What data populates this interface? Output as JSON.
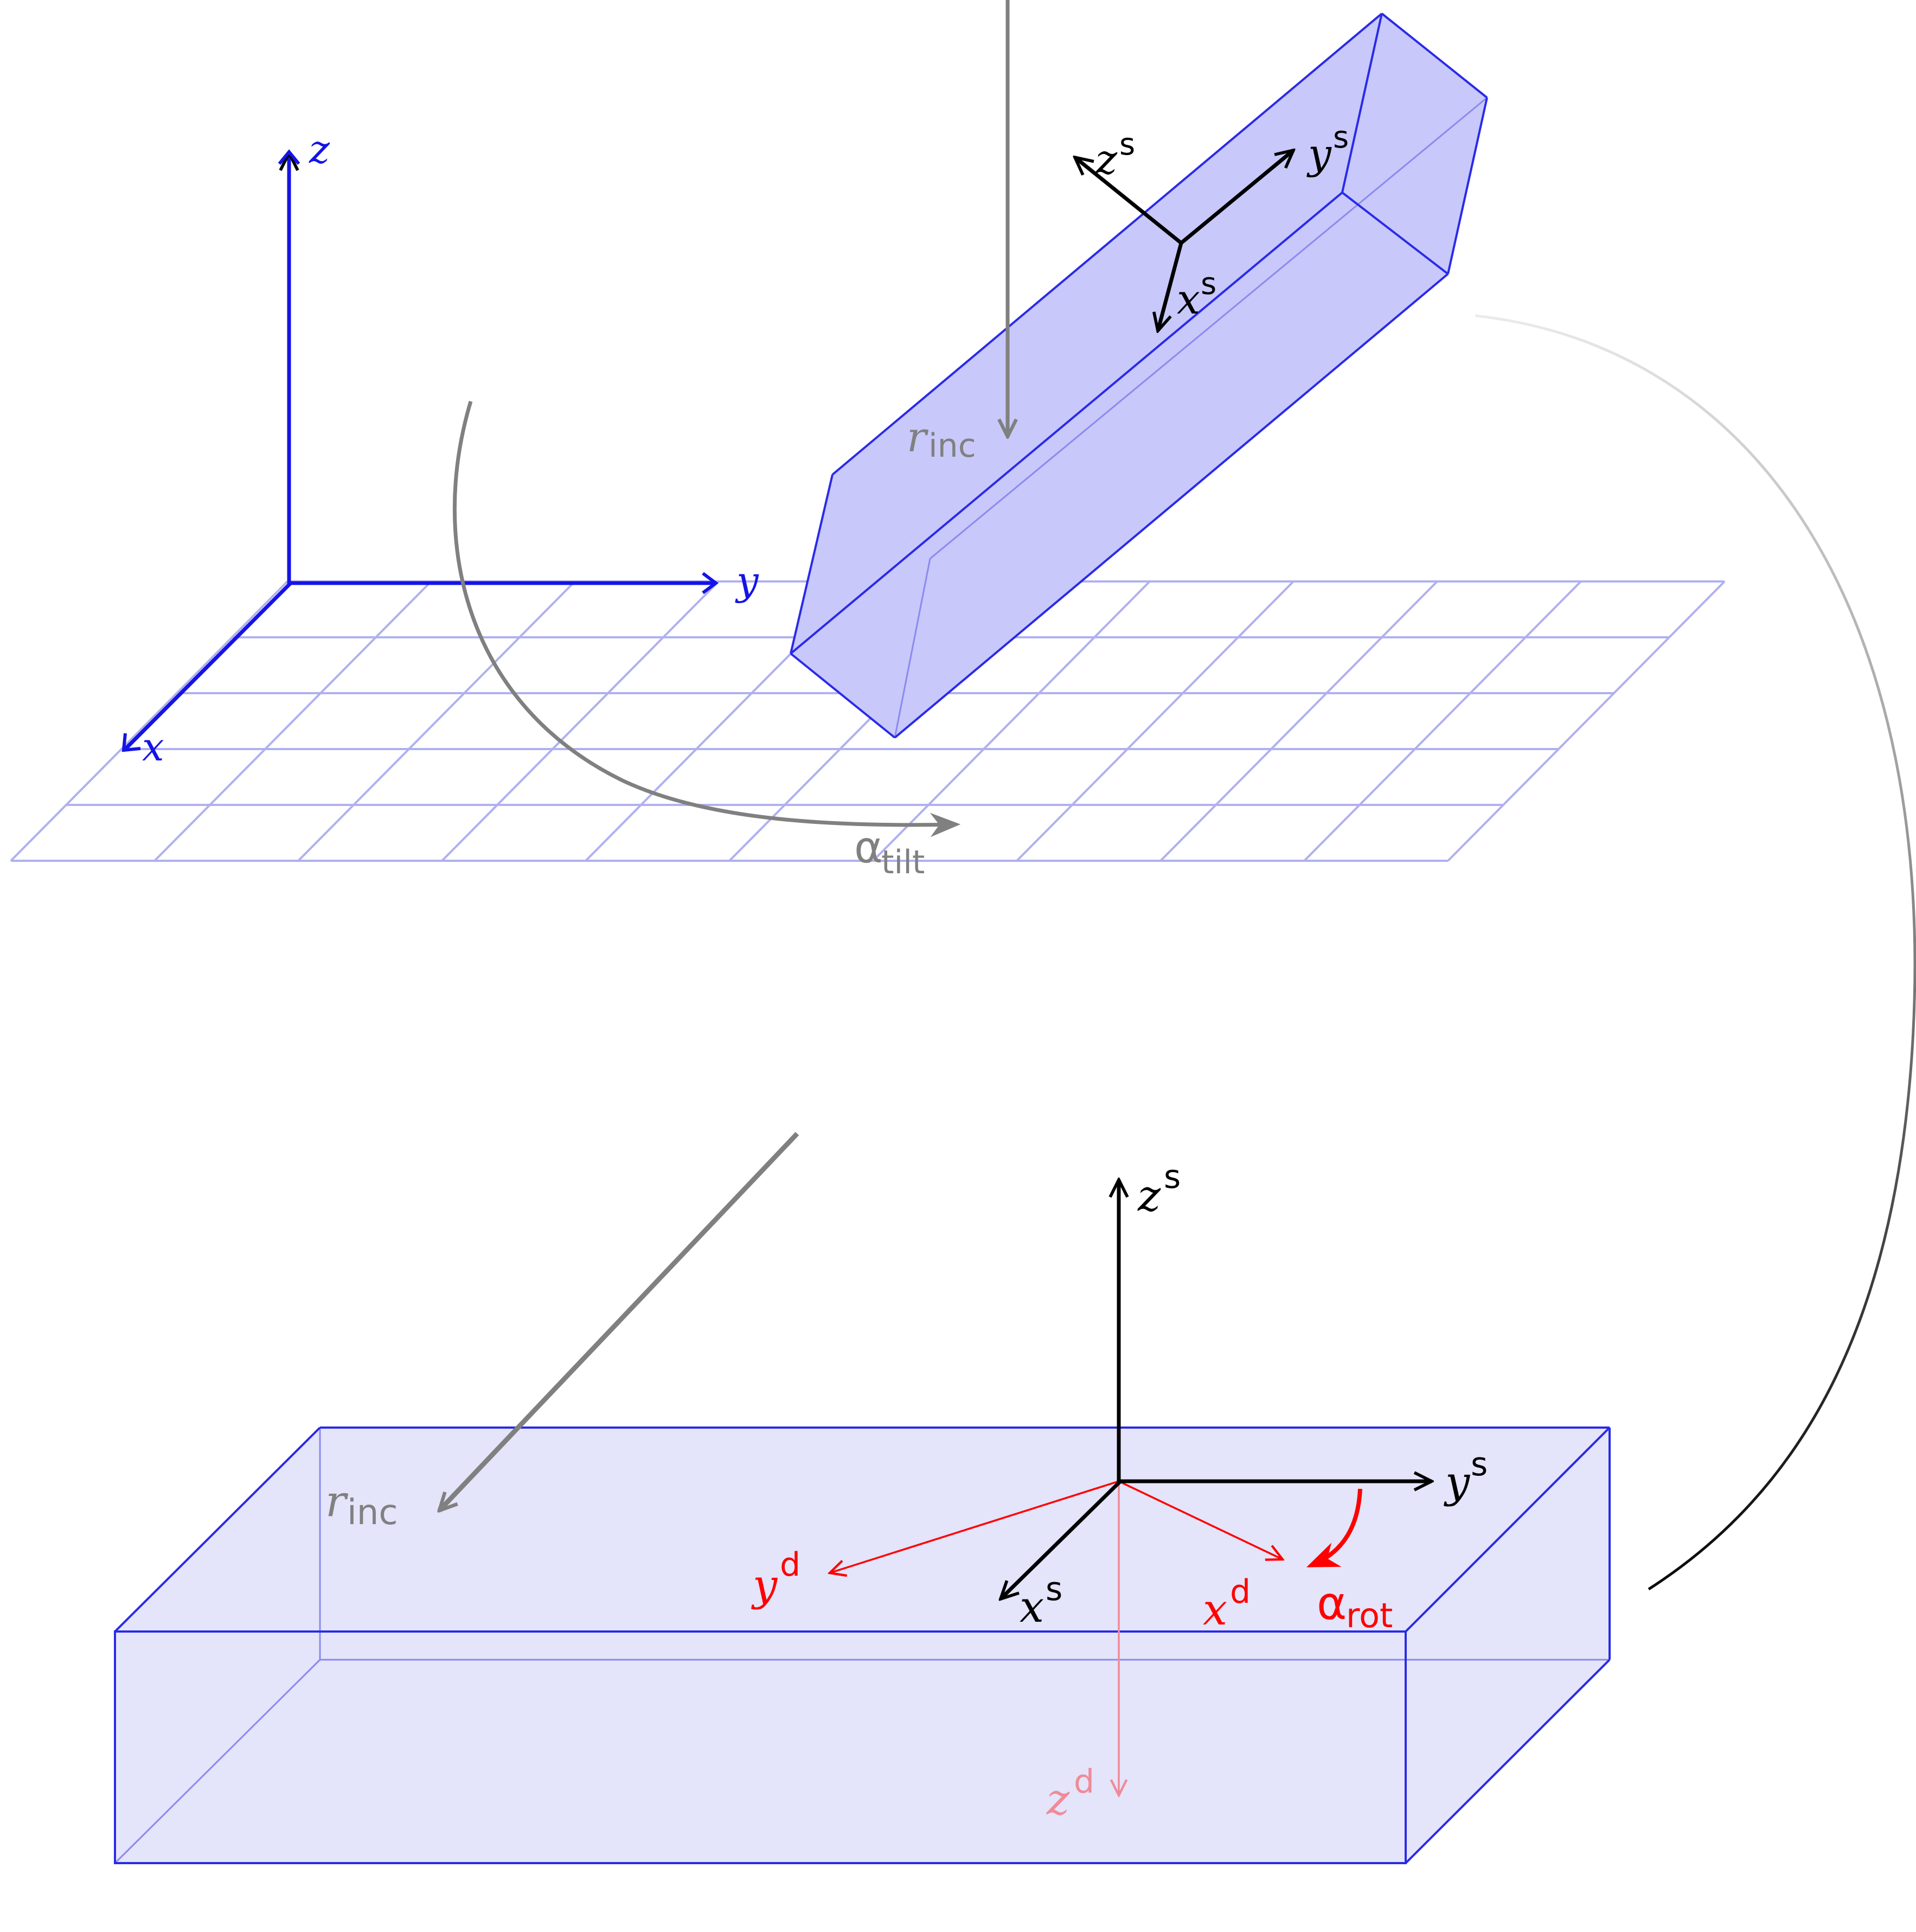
{
  "colors": {
    "lab_blue": "#1414e6",
    "grid_blue": "#b0b0f0",
    "crystal_fill": "#c8c8fa",
    "crystal_edge": "#2a2ae8",
    "slab_fill": "#e4e4fa",
    "beam_gray": "#808080",
    "sample_black": "#000000",
    "detector_red": "#ff0000",
    "detector_pink": "#f08a98"
  },
  "lab_frame": {
    "z": "z",
    "y": "y",
    "x": "x"
  },
  "top": {
    "beam_label": {
      "main": "r",
      "sub": "inc"
    },
    "tilt_label": {
      "main": "α",
      "sub": "tilt"
    },
    "sample_axes": {
      "z": {
        "main": "z",
        "sup": "s"
      },
      "y": {
        "main": "y",
        "sup": "s"
      },
      "x": {
        "main": "x",
        "sup": "s"
      }
    }
  },
  "bottom": {
    "beam_label": {
      "main": "r",
      "sub": "inc"
    },
    "sample_axes": {
      "z": {
        "main": "z",
        "sup": "s"
      },
      "y": {
        "main": "y",
        "sup": "s"
      },
      "x": {
        "main": "x",
        "sup": "s"
      }
    },
    "detector_axes": {
      "y": {
        "main": "y",
        "sup": "d"
      },
      "x": {
        "main": "x",
        "sup": "d"
      },
      "z": {
        "main": "z",
        "sup": "d"
      }
    },
    "rot_label": {
      "main": "α",
      "sub": "rot"
    }
  }
}
